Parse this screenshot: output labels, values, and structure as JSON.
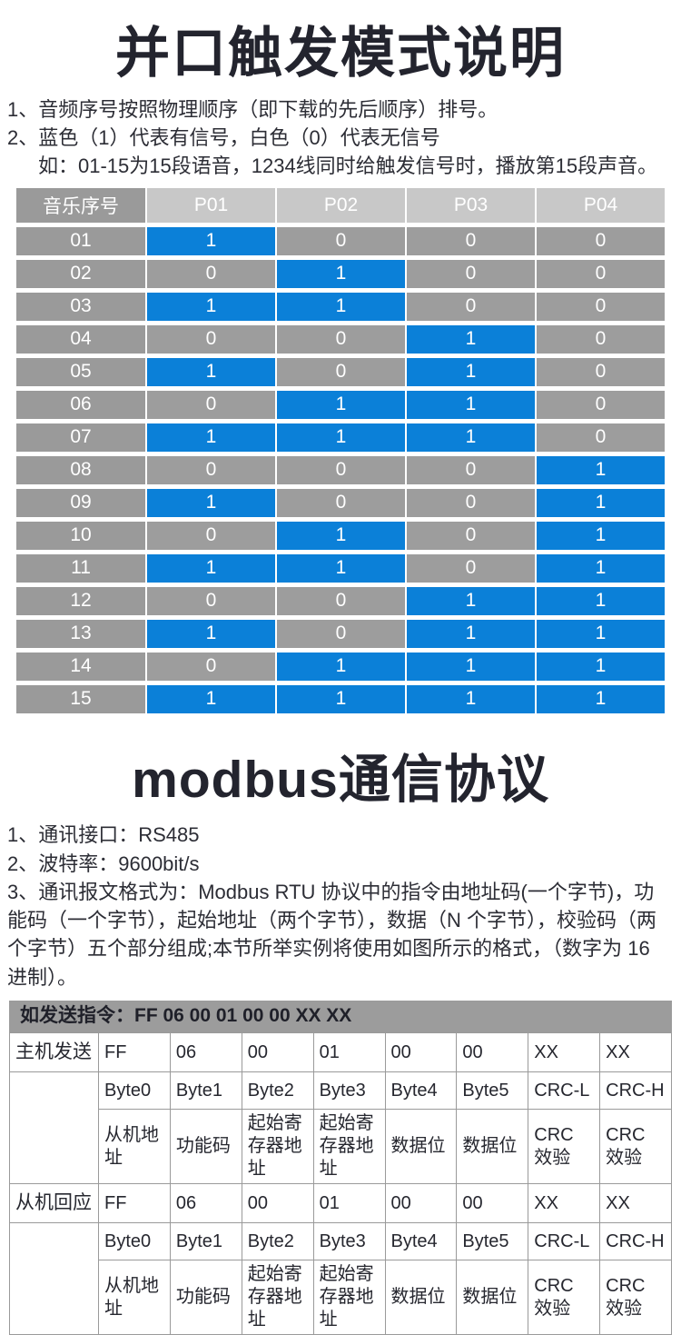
{
  "colors": {
    "blue": "#0b80d8",
    "cell_gray": "#9d9d9d",
    "header_gray": "#c8c8c8",
    "label_gray": "#9a9a9a",
    "bar_gray": "#9c9c9c",
    "title": "#23242e"
  },
  "section1": {
    "title": "并口触发模式说明",
    "notes": [
      "1、音频序号按照物理顺序（即下载的先后顺序）排号。",
      "2、蓝色（1）代表有信号，白色（0）代表无信号",
      "如：01-15为15段语音，1234线同时给触发信号时，播放第15段声音。"
    ],
    "table": {
      "header": [
        "音乐序号",
        "P01",
        "P02",
        "P03",
        "P04"
      ],
      "rows": [
        {
          "label": "01",
          "values": [
            1,
            0,
            0,
            0
          ]
        },
        {
          "label": "02",
          "values": [
            0,
            1,
            0,
            0
          ]
        },
        {
          "label": "03",
          "values": [
            1,
            1,
            0,
            0
          ]
        },
        {
          "label": "04",
          "values": [
            0,
            0,
            1,
            0
          ]
        },
        {
          "label": "05",
          "values": [
            1,
            0,
            1,
            0
          ]
        },
        {
          "label": "06",
          "values": [
            0,
            1,
            1,
            0
          ]
        },
        {
          "label": "07",
          "values": [
            1,
            1,
            1,
            0
          ]
        },
        {
          "label": "08",
          "values": [
            0,
            0,
            0,
            1
          ]
        },
        {
          "label": "09",
          "values": [
            1,
            0,
            0,
            1
          ]
        },
        {
          "label": "10",
          "values": [
            0,
            1,
            0,
            1
          ]
        },
        {
          "label": "11",
          "values": [
            1,
            1,
            0,
            1
          ]
        },
        {
          "label": "12",
          "values": [
            0,
            0,
            1,
            1
          ]
        },
        {
          "label": "13",
          "values": [
            1,
            0,
            1,
            1
          ]
        },
        {
          "label": "14",
          "values": [
            0,
            1,
            1,
            1
          ]
        },
        {
          "label": "15",
          "values": [
            1,
            1,
            1,
            1
          ]
        }
      ]
    }
  },
  "section2": {
    "title": "modbus通信协议",
    "notes": [
      "1、通讯接口：RS485",
      "2、波特率：9600bit/s",
      "3、通讯报文格式为：Modbus RTU 协议中的指令由地址码(一个字节)，功能码（一个字节），起始地址（两个字节），数据（N 个字节），校验码（两个字节）五个部分组成;本节所举实例将使用如图所示的格式，（数字为 16 进制）。"
    ],
    "command_bar": "如发送指令：FF 06 00 01 00 00 XX XX",
    "table": {
      "blocks": [
        {
          "label": "主机发送",
          "hex": [
            "FF",
            "06",
            "00",
            "01",
            "00",
            "00",
            "XX",
            "XX"
          ],
          "bytes": [
            "Byte0",
            "Byte1",
            "Byte2",
            "Byte3",
            "Byte4",
            "Byte5",
            "CRC-L",
            "CRC-H"
          ],
          "desc": [
            "从机地址",
            "功能码",
            "起始寄存器地址",
            "起始寄存器地址",
            "数据位",
            "数据位",
            "CRC 效验",
            "CRC 效验"
          ]
        },
        {
          "label": "从机回应",
          "hex": [
            "FF",
            "06",
            "00",
            "01",
            "00",
            "00",
            "XX",
            "XX"
          ],
          "bytes": [
            "Byte0",
            "Byte1",
            "Byte2",
            "Byte3",
            "Byte4",
            "Byte5",
            "CRC-L",
            "CRC-H"
          ],
          "desc": [
            "从机地址",
            "功能码",
            "起始寄存器地址",
            "起始寄存器地址",
            "数据位",
            "数据位",
            "CRC 效验",
            "CRC 效验"
          ]
        }
      ]
    }
  }
}
